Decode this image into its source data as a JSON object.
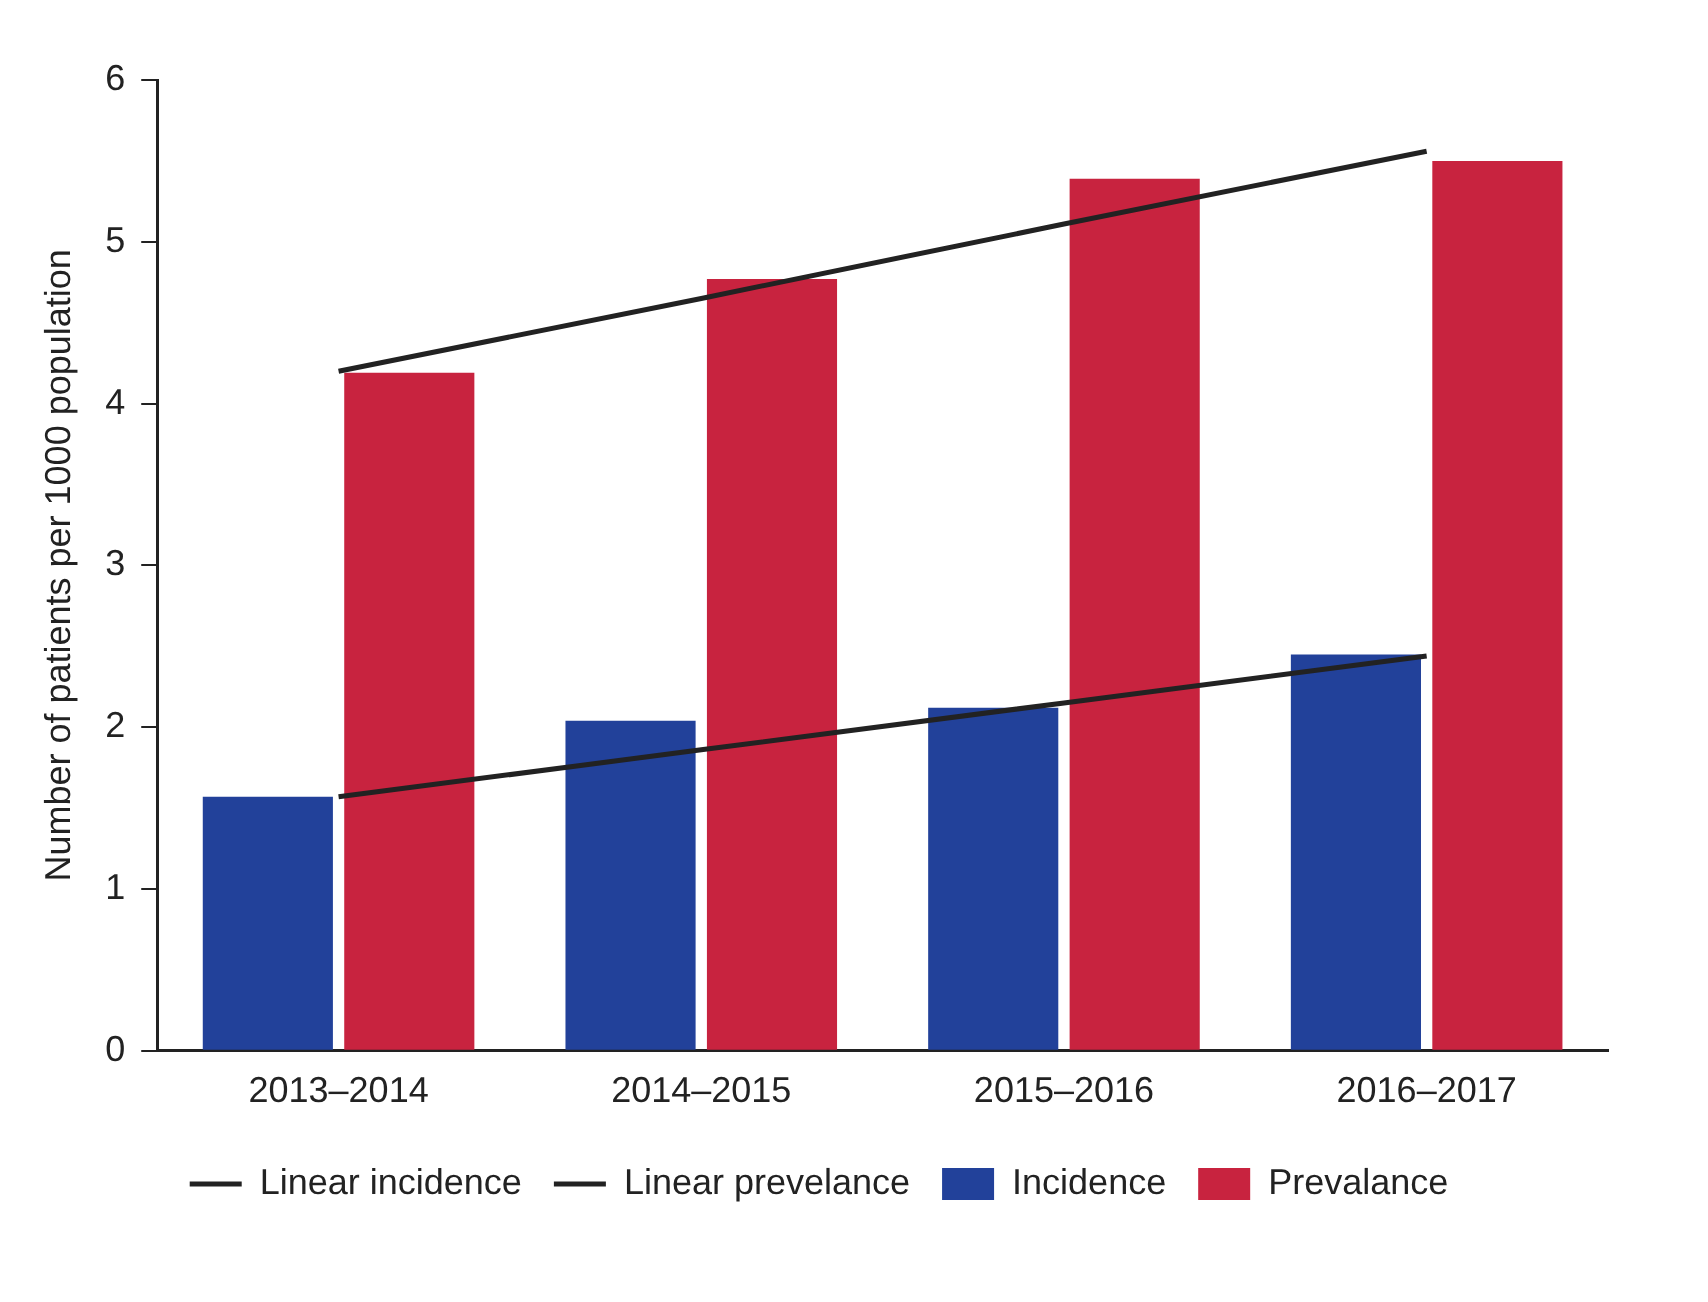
{
  "chart_data": {
    "type": "bar",
    "ylabel": "Number of patients per 1000 population",
    "categories": [
      "2013–2014",
      "2014–2015",
      "2015–2016",
      "2016–2017"
    ],
    "series": [
      {
        "name": "Incidence",
        "color": "#22419a",
        "values": [
          1.57,
          2.04,
          2.12,
          2.45
        ]
      },
      {
        "name": "Prevalance",
        "color": "#c8233f",
        "values": [
          4.19,
          4.77,
          5.39,
          5.5
        ]
      },
      {
        "name": "Linear incidence",
        "type": "line",
        "color": "#222222",
        "values": [
          1.57,
          1.86,
          2.15,
          2.44
        ]
      },
      {
        "name": "Linear prevelance",
        "type": "line",
        "color": "#222222",
        "values": [
          4.2,
          4.65,
          5.11,
          5.56
        ]
      }
    ],
    "ylim": [
      0,
      6
    ],
    "yticks": [
      0,
      1,
      2,
      3,
      4,
      5,
      6
    ],
    "grid": false,
    "legend": "bottom",
    "marker": "none",
    "line_style": "solid"
  }
}
